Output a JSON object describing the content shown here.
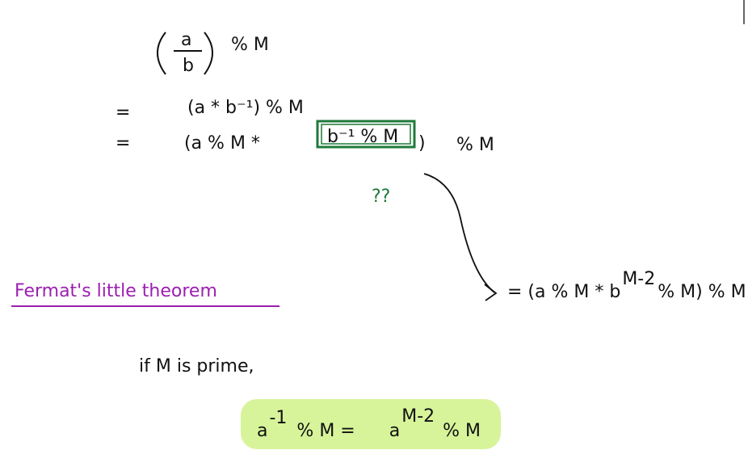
{
  "fraction": {
    "numerator": "a",
    "denominator": "b",
    "suffix": "% M"
  },
  "step1": {
    "sign": "=",
    "text": "(a * b⁻¹) % M"
  },
  "step2": {
    "sign": "=",
    "before": "(a % M  *",
    "boxed": "b⁻¹ % M",
    "after": ")",
    "suffix": "% M",
    "question": "??"
  },
  "result": {
    "before": "= (a % M  *  b",
    "superscript": "M-2",
    "after": "% M) % M"
  },
  "heading": "Fermat's little theorem",
  "condition": "if M is prime,",
  "theorem": {
    "left_base": "a",
    "left_superscript": "-1",
    "left_rest": "% M  =",
    "right_base": "a",
    "right_superscript": "M-2",
    "right_rest": "% M"
  }
}
